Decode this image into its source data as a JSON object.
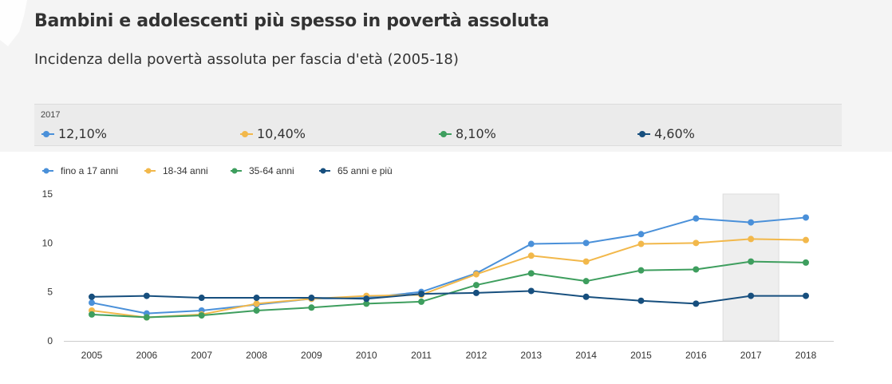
{
  "header": {
    "title": "Bambini e adolescenti più spesso in povertà assoluta",
    "subtitle": "Incidenza della povertà assoluta per fascia d'età (2005-18)"
  },
  "infobox": {
    "year": "2017",
    "items": [
      {
        "value": "12,10%",
        "color": "#4a90d9"
      },
      {
        "value": "10,40%",
        "color": "#f2b84b"
      },
      {
        "value": "8,10%",
        "color": "#3e9e5e"
      },
      {
        "value": "4,60%",
        "color": "#174f7e"
      }
    ]
  },
  "chart_data": {
    "type": "line",
    "title": "",
    "xlabel": "",
    "ylabel": "",
    "categories": [
      "2005",
      "2006",
      "2007",
      "2008",
      "2009",
      "2010",
      "2011",
      "2012",
      "2013",
      "2014",
      "2015",
      "2016",
      "2017",
      "2018"
    ],
    "y_ticks": [
      "0",
      "5",
      "10",
      "15"
    ],
    "ylim": [
      0,
      15
    ],
    "highlight": "2017",
    "legend_position": "top-left",
    "grid": false,
    "series": [
      {
        "name": "fino a 17 anni",
        "color": "#4a90d9",
        "values": [
          3.9,
          2.8,
          3.1,
          3.7,
          4.3,
          4.4,
          5.0,
          6.9,
          9.9,
          10.0,
          10.9,
          12.5,
          12.1,
          12.6
        ]
      },
      {
        "name": "18-34 anni",
        "color": "#f2b84b",
        "values": [
          3.1,
          2.4,
          2.7,
          3.8,
          4.3,
          4.6,
          4.7,
          6.8,
          8.7,
          8.1,
          9.9,
          10.0,
          10.4,
          10.3
        ]
      },
      {
        "name": "35-64 anni",
        "color": "#3e9e5e",
        "values": [
          2.7,
          2.4,
          2.6,
          3.1,
          3.4,
          3.8,
          4.0,
          5.7,
          6.9,
          6.1,
          7.2,
          7.3,
          8.1,
          8.0
        ]
      },
      {
        "name": "65 anni e più",
        "color": "#174f7e",
        "values": [
          4.5,
          4.6,
          4.4,
          4.4,
          4.4,
          4.3,
          4.8,
          4.9,
          5.1,
          4.5,
          4.1,
          3.8,
          4.6,
          4.6
        ]
      }
    ]
  }
}
